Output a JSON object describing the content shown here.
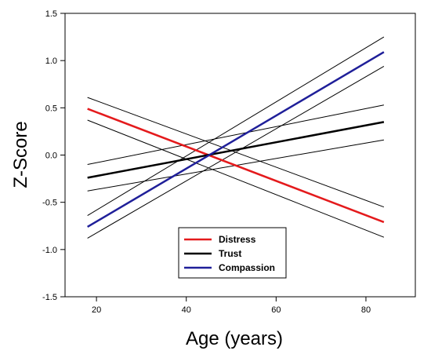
{
  "chart_data": {
    "type": "line",
    "xlabel": "Age (years)",
    "ylabel": "Z-Score",
    "xlim": [
      13,
      91
    ],
    "ylim": [
      -1.5,
      1.5
    ],
    "xticks": [
      20,
      40,
      60,
      80
    ],
    "yticks": [
      -1.5,
      -1.0,
      -0.5,
      0.0,
      0.5,
      1.0,
      1.5
    ],
    "xtick_labels": [
      "20",
      "40",
      "60",
      "80"
    ],
    "ytick_labels": [
      "-1.5",
      "-1.0",
      "-0.5",
      "0.0",
      "0.5",
      "1.0",
      "1.5"
    ],
    "grid": false,
    "legend_position": "bottom-center",
    "series": [
      {
        "name": "Distress",
        "color": "#e41a1c",
        "style": "thick",
        "x": [
          18,
          84
        ],
        "y": [
          0.49,
          -0.71
        ],
        "ci_upper": [
          0.61,
          -0.55
        ],
        "ci_lower": [
          0.37,
          -0.87
        ]
      },
      {
        "name": "Trust",
        "color": "#000000",
        "style": "thick",
        "x": [
          18,
          84
        ],
        "y": [
          -0.24,
          0.35
        ],
        "ci_upper": [
          -0.1,
          0.53
        ],
        "ci_lower": [
          -0.38,
          0.16
        ]
      },
      {
        "name": "Compassion",
        "color": "#1f1f99",
        "style": "thick",
        "x": [
          18,
          84
        ],
        "y": [
          -0.76,
          1.09
        ],
        "ci_upper": [
          -0.64,
          1.25
        ],
        "ci_lower": [
          -0.88,
          0.94
        ]
      }
    ]
  }
}
